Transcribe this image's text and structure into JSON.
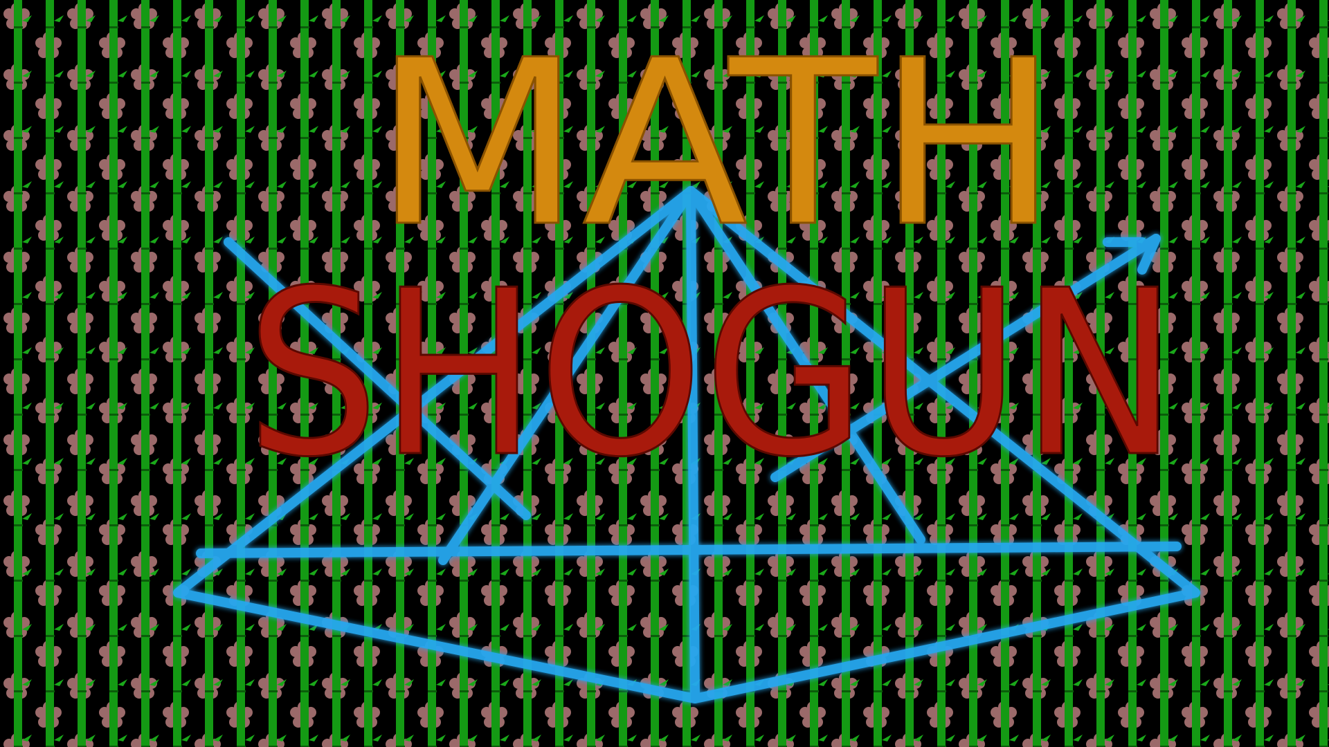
{
  "title": {
    "line1": "MATH",
    "line2": "SHOGUN"
  }
}
